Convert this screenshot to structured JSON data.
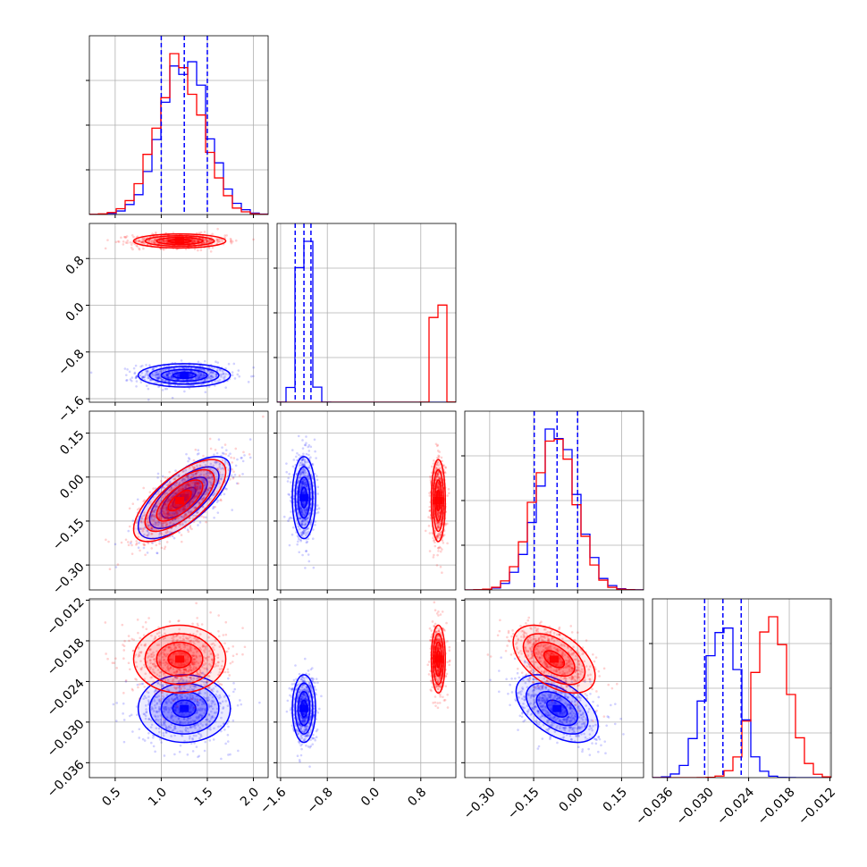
{
  "chart_data": {
    "type": "corner",
    "title": "",
    "grid": true,
    "legend": "none",
    "parameters": [
      {
        "ticks": [
          0.5,
          1.0,
          1.5,
          2.0
        ],
        "tick_labels": [
          "0.5",
          "1.0",
          "1.5",
          "2.0"
        ],
        "range": [
          0.22,
          2.16
        ]
      },
      {
        "ticks": [
          -1.6,
          -0.8,
          0.0,
          0.8
        ],
        "tick_labels": [
          "−1.6",
          "−0.8",
          "0.0",
          "0.8"
        ],
        "range": [
          -1.66,
          1.4
        ]
      },
      {
        "ticks": [
          -0.3,
          -0.15,
          0.0,
          0.15
        ],
        "tick_labels": [
          "−0.30",
          "−0.15",
          "0.00",
          "0.15"
        ],
        "range": [
          -0.385,
          0.225
        ]
      },
      {
        "ticks": [
          -0.036,
          -0.03,
          -0.024,
          -0.018,
          -0.012
        ],
        "tick_labels": [
          "−0.036",
          "−0.030",
          "−0.024",
          "−0.018",
          "−0.012"
        ],
        "range": [
          -0.0382,
          -0.0118
        ]
      }
    ],
    "series": [
      {
        "color": "#0000ff",
        "means": [
          1.25,
          -1.2,
          -0.07,
          -0.028
        ],
        "sigmas": [
          0.25,
          0.1,
          0.07,
          0.0025
        ],
        "correlations": [
          [
            1,
            0,
            0.7,
            0
          ],
          [
            0,
            1,
            0,
            0
          ],
          [
            0.7,
            0,
            1,
            -0.5
          ],
          [
            0,
            0,
            -0.5,
            1
          ]
        ],
        "quantile_lines": [
          [
            1.0,
            1.25,
            1.5
          ],
          [
            -1.35,
            -1.2,
            -1.08
          ],
          [
            -0.148,
            -0.07,
            0.0
          ],
          [
            -0.0305,
            -0.0278,
            -0.0251
          ]
        ]
      },
      {
        "color": "#ff0000",
        "means": [
          1.2,
          1.1,
          -0.08,
          -0.0207
        ],
        "sigmas": [
          0.25,
          0.06,
          0.07,
          0.0025
        ],
        "correlations": [
          [
            1,
            0,
            0.7,
            0
          ],
          [
            0,
            1,
            0,
            0
          ],
          [
            0.7,
            0,
            1,
            -0.5
          ],
          [
            0,
            0,
            -0.5,
            1
          ]
        ]
      }
    ]
  }
}
